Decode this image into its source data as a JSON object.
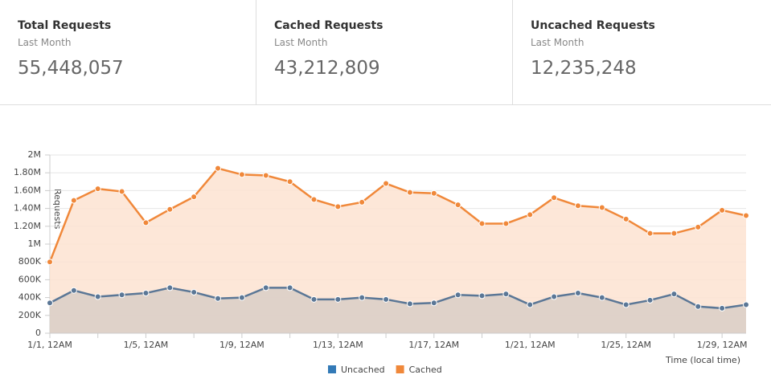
{
  "cards": [
    {
      "title": "Total Requests",
      "period": "Last Month",
      "value": "55,448,057"
    },
    {
      "title": "Cached Requests",
      "period": "Last Month",
      "value": "43,212,809"
    },
    {
      "title": "Uncached Requests",
      "period": "Last Month",
      "value": "12,235,248"
    }
  ],
  "chart_data": {
    "type": "area",
    "y_label": "Requests",
    "x_label": "Time (local time)",
    "categories": [
      "1/1, 12AM",
      null,
      null,
      null,
      "1/5, 12AM",
      null,
      null,
      null,
      "1/9, 12AM",
      null,
      null,
      null,
      "1/13, 12AM",
      null,
      null,
      null,
      "1/17, 12AM",
      null,
      null,
      null,
      "1/21, 12AM",
      null,
      null,
      null,
      "1/25, 12AM",
      null,
      null,
      null,
      "1/29, 12AM",
      null
    ],
    "ylim": [
      0,
      2000000
    ],
    "yticks": [
      0,
      {
        "value": 200000,
        "label": "200K"
      },
      {
        "value": 400000,
        "label": "400K"
      },
      {
        "value": 600000,
        "label": "600K"
      },
      {
        "value": 800000,
        "label": "800K"
      },
      {
        "value": 1000000,
        "label": "1M"
      },
      {
        "value": 1200000,
        "label": "1.20M"
      },
      {
        "value": 1400000,
        "label": "1.40M"
      },
      {
        "value": 1600000,
        "label": "1.60M"
      },
      {
        "value": 1800000,
        "label": "1.80M"
      },
      {
        "value": 2000000,
        "label": "2M"
      }
    ],
    "grid": true,
    "series": [
      {
        "name": "Cached",
        "color": "#f0883a",
        "fill": "#fde3d1",
        "legend_color": "#f0883a",
        "values": [
          800000,
          1490000,
          1620000,
          1590000,
          1240000,
          1390000,
          1530000,
          1850000,
          1780000,
          1770000,
          1700000,
          1500000,
          1420000,
          1470000,
          1680000,
          1580000,
          1570000,
          1440000,
          1230000,
          1230000,
          1330000,
          1520000,
          1430000,
          1410000,
          1280000,
          1120000,
          1120000,
          1190000,
          1380000,
          1320000
        ]
      },
      {
        "name": "Uncached",
        "color": "#5b7796",
        "fill": "#d9cec7",
        "legend_color": "#337ab7",
        "values": [
          340000,
          480000,
          410000,
          430000,
          450000,
          510000,
          460000,
          390000,
          400000,
          510000,
          510000,
          380000,
          380000,
          400000,
          380000,
          330000,
          340000,
          430000,
          420000,
          440000,
          320000,
          410000,
          450000,
          400000,
          320000,
          370000,
          440000,
          300000,
          280000,
          320000
        ]
      }
    ]
  }
}
